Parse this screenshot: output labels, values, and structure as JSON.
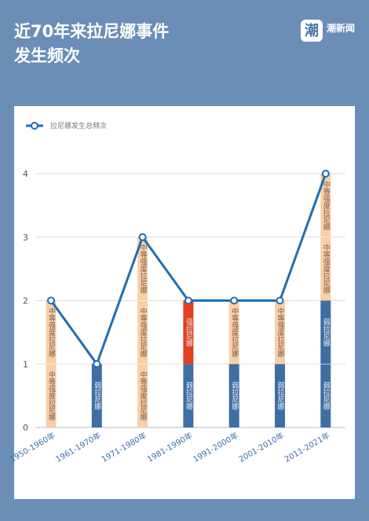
{
  "chart_data": {
    "type": "stacked_bar_line",
    "title": [
      "近70年来拉尼娜事件",
      "发生频次"
    ],
    "brand": "潮新闻",
    "logo_char": "潮",
    "categories": [
      "1950-1960年",
      "1961-1970年",
      "1971-1980年",
      "1981-1990年",
      "1991-2000年",
      "2001-2010年",
      "2011-2021年"
    ],
    "bar_series": [
      {
        "name": "弱拉尼娜",
        "color": "#3f6ea3",
        "values": [
          0,
          1,
          0,
          1,
          1,
          1,
          2
        ]
      },
      {
        "name": "强拉尼娜",
        "color": "#e2401f",
        "values": [
          0,
          0,
          0,
          1,
          0,
          0,
          0
        ]
      },
      {
        "name": "中等强度拉尼娜",
        "color": "#f9cfa8",
        "values": [
          2,
          0,
          3,
          0,
          1,
          1,
          2
        ]
      }
    ],
    "line_series": {
      "name": "拉尼娜发生总频次",
      "color": "#1f6db3",
      "values": [
        2,
        1,
        3,
        2,
        2,
        2,
        4
      ]
    },
    "ylim": [
      0,
      4
    ],
    "yticks": [
      0,
      1,
      2,
      3,
      4
    ],
    "grid": true
  }
}
